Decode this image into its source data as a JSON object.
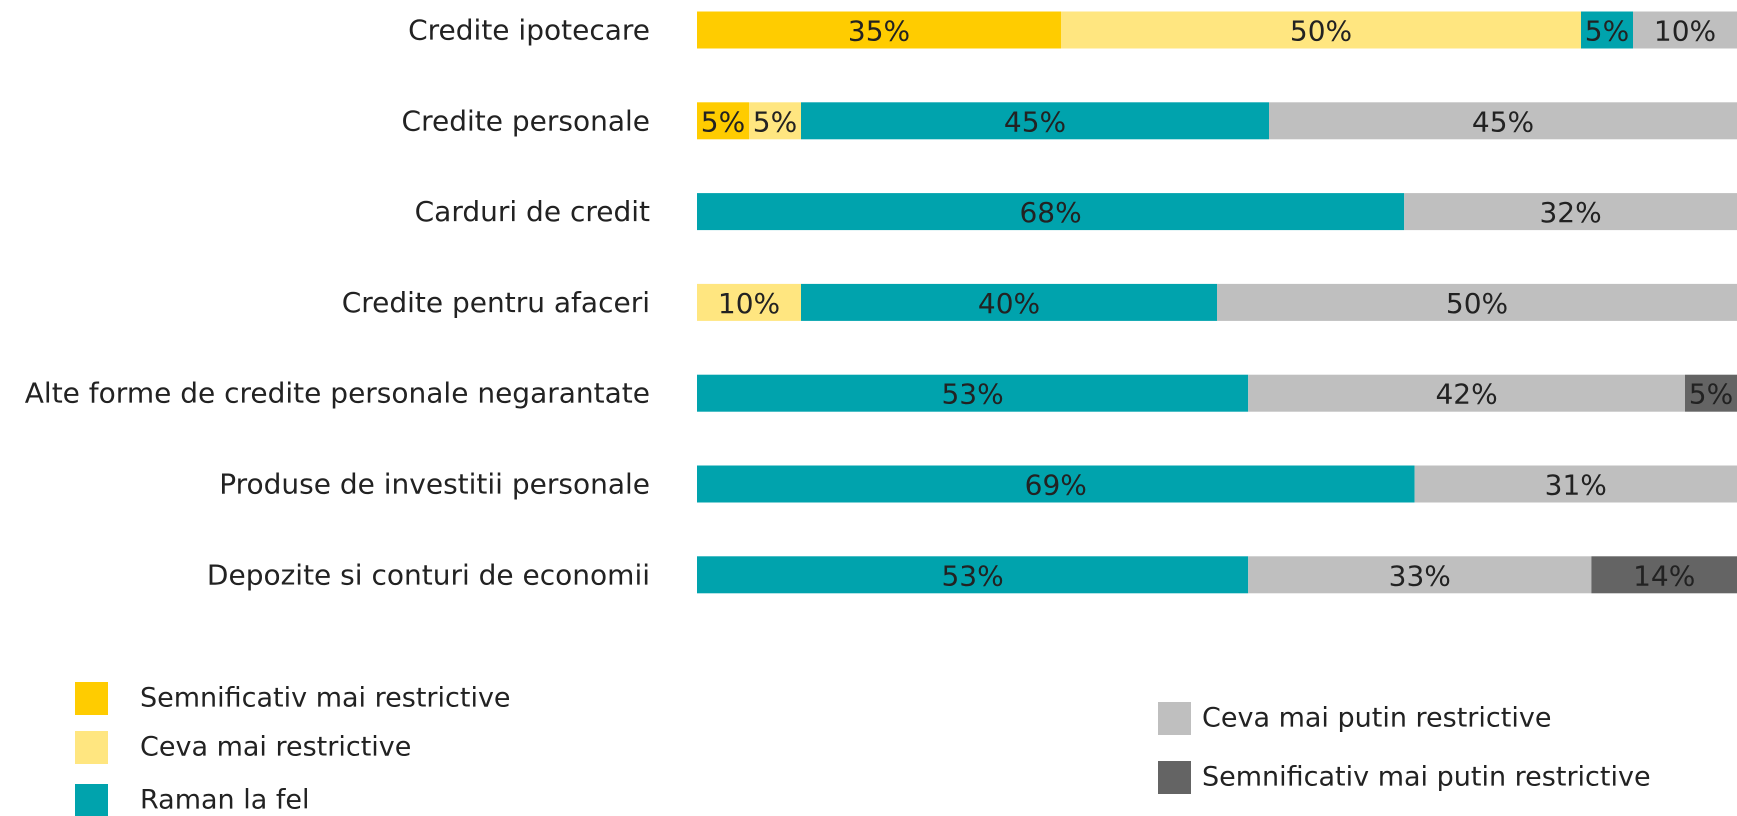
{
  "chart_data": {
    "type": "stacked_bar_horizontal",
    "categories": [
      "Credite ipotecare",
      "Credite personale",
      "Carduri de credit",
      "Credite pentru afaceri",
      "Alte forme de credite personale negarantate",
      "Produse de investitii personale",
      "Depozite si conturi de economii"
    ],
    "xlim": [
      0,
      100
    ],
    "series": [
      {
        "name": "Semnificativ mai restrictive",
        "color": "#ffcc00",
        "values": [
          35,
          5,
          null,
          null,
          null,
          null,
          null
        ],
        "value_labels": [
          "35%",
          "5%",
          null,
          null,
          null,
          null,
          null
        ]
      },
      {
        "name": "Ceva mai restrictive",
        "color": "#ffe680",
        "values": [
          50,
          5,
          null,
          10,
          null,
          null,
          null
        ],
        "value_labels": [
          "50%",
          "5%",
          null,
          "10%",
          null,
          null,
          null
        ]
      },
      {
        "name": "Raman la fel",
        "color": "#00a3ad",
        "values": [
          5,
          45,
          68,
          40,
          53,
          69,
          53
        ],
        "value_labels": [
          "5%",
          "45%",
          "68%",
          "40%",
          "53%",
          "69%",
          "53%"
        ]
      },
      {
        "name": "Ceva mai putin restrictive",
        "color": "#bfbfbf",
        "values": [
          10,
          45,
          32,
          50,
          42,
          31,
          33
        ],
        "value_labels": [
          "10%",
          "45%",
          "32%",
          "50%",
          "42%",
          "31%",
          "33%"
        ]
      },
      {
        "name": "Semnificativ mai putin restrictive",
        "color": "#646464",
        "values": [
          null,
          null,
          null,
          null,
          5,
          null,
          14
        ],
        "value_labels": [
          null,
          null,
          null,
          null,
          "5%",
          null,
          "14%"
        ]
      }
    ],
    "legend": "bottom"
  }
}
